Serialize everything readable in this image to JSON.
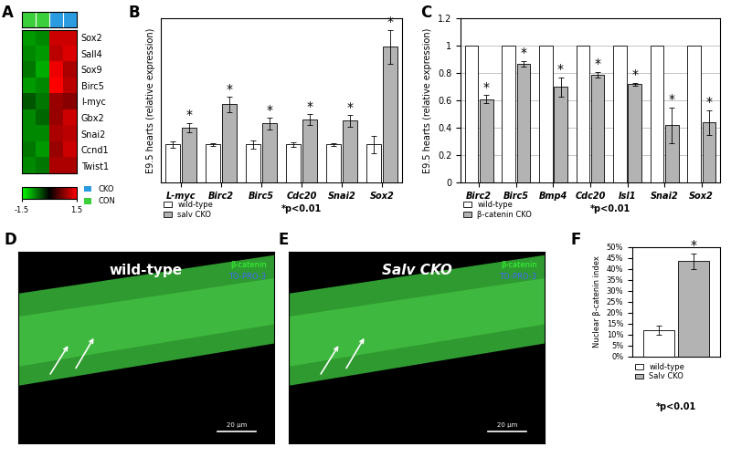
{
  "chart_data": [
    {
      "type": "heatmap",
      "panel_label": "A",
      "rows": [
        "Sox2",
        "Sall4",
        "Sox9",
        "Birc5",
        "l-myc",
        "Gbx2",
        "Snai2",
        "Ccnd1",
        "Twist1"
      ],
      "columns": [
        "CON",
        "CON",
        "CKO",
        "CKO"
      ],
      "groups": [
        {
          "name": "CKO",
          "color": "#2b9be0"
        },
        {
          "name": "CON",
          "color": "#3ccf3c"
        }
      ],
      "cells": [
        [
          -0.9,
          -0.8,
          1.2,
          1.2
        ],
        [
          -0.8,
          -0.9,
          1.1,
          1.3
        ],
        [
          -0.7,
          -1.0,
          1.4,
          1.0
        ],
        [
          -0.9,
          -0.8,
          1.5,
          1.1
        ],
        [
          -0.5,
          -0.7,
          0.9,
          0.8
        ],
        [
          -0.8,
          -0.6,
          0.9,
          1.2
        ],
        [
          -0.8,
          -0.8,
          1.0,
          1.1
        ],
        [
          -0.7,
          -0.9,
          0.9,
          1.2
        ],
        [
          -0.8,
          -0.7,
          1.0,
          1.0
        ]
      ],
      "color_range": [
        -1.5,
        1.5
      ],
      "color_ticks": [
        -1.5,
        1.5
      ]
    },
    {
      "type": "bar",
      "panel_label": "B",
      "y_label": "E9.5 hearts (relative expression)",
      "categories": [
        "L-myc",
        "Birc2",
        "Birc5",
        "Cdc20",
        "Snai2",
        "Sox2"
      ],
      "series": [
        {
          "name": "wild-type",
          "color": "#ffffff",
          "values": [
            1,
            1,
            1,
            1,
            1,
            1
          ],
          "errors": [
            0.08,
            0.04,
            0.1,
            0.05,
            0.04,
            0.22
          ]
        },
        {
          "name": "salv CKO",
          "color": "#b3b3b3",
          "values": [
            1.45,
            2.05,
            1.55,
            1.65,
            1.62,
            3.55
          ],
          "errors": [
            0.12,
            0.2,
            0.15,
            0.15,
            0.15,
            0.45
          ],
          "significance": [
            "*",
            "*",
            "*",
            "*",
            "*",
            "*"
          ]
        }
      ],
      "ylim": [
        0,
        4.3
      ],
      "tick_labels": "x",
      "annotations": [
        "*p<0.01"
      ]
    },
    {
      "type": "bar",
      "panel_label": "C",
      "y_label": "E9.5 hearts (relative expression)",
      "categories": [
        "Birc2",
        "Birc5",
        "Bmp4",
        "Cdc20",
        "Isl1",
        "Snai2",
        "Sox2"
      ],
      "series": [
        {
          "name": "wild-type",
          "color": "#ffffff",
          "values": [
            1,
            1,
            1,
            1,
            1,
            1,
            1
          ]
        },
        {
          "name": "β-catenin CKO",
          "color": "#b3b3b3",
          "values": [
            0.61,
            0.87,
            0.7,
            0.79,
            0.72,
            0.42,
            0.44
          ],
          "errors": [
            0.03,
            0.02,
            0.07,
            0.02,
            0.01,
            0.13,
            0.09
          ],
          "significance": [
            "*",
            "*",
            "*",
            "*",
            "*",
            "*",
            "*"
          ]
        }
      ],
      "ylim": [
        0,
        1.2
      ],
      "yticks": [
        0,
        0.2,
        0.4,
        0.6,
        0.8,
        1,
        1.2
      ],
      "grid": true,
      "annotations": [
        "*p<0.01"
      ]
    },
    {
      "type": "image",
      "panel_label": "D",
      "title": "wild-type",
      "channels": [
        {
          "name": "β-catenin",
          "color": "#33ff33"
        },
        {
          "name": "TO-PRO-3",
          "color": "#4466ff"
        }
      ],
      "scale_bar": "20 μm"
    },
    {
      "type": "image",
      "panel_label": "E",
      "title": "Salv CKO",
      "channels": [
        {
          "name": "β-catenin",
          "color": "#33ff33"
        },
        {
          "name": "TO-PRO-3",
          "color": "#4466ff"
        }
      ],
      "scale_bar": "20 μm"
    },
    {
      "type": "bar",
      "panel_label": "F",
      "y_label": "Nuclear β-catenin index",
      "categories": [
        null
      ],
      "series": [
        {
          "name": "wild-type",
          "color": "#ffffff",
          "values": [
            12
          ],
          "errors": [
            2
          ]
        },
        {
          "name": "Salv CKO",
          "color": "#b3b3b3",
          "values": [
            43.5
          ],
          "errors": [
            3.5
          ],
          "significance": [
            "*"
          ]
        }
      ],
      "ylim": [
        0,
        50
      ],
      "yticks": [
        {
          "value": 0,
          "label": "0%"
        },
        {
          "value": 5,
          "label": "5%"
        },
        {
          "value": 10,
          "label": "10%"
        },
        {
          "value": 15,
          "label": "15%"
        },
        {
          "value": 20,
          "label": "20%"
        },
        {
          "value": 25,
          "label": "25%"
        },
        {
          "value": 30,
          "label": "30%"
        },
        {
          "value": 35,
          "label": "35%"
        },
        {
          "value": 40,
          "label": "40%"
        },
        {
          "value": 45,
          "label": "45%"
        },
        {
          "value": 50,
          "label": "50%"
        }
      ],
      "tick_labels": "y",
      "annotations": [
        "*p<0.01"
      ]
    }
  ]
}
